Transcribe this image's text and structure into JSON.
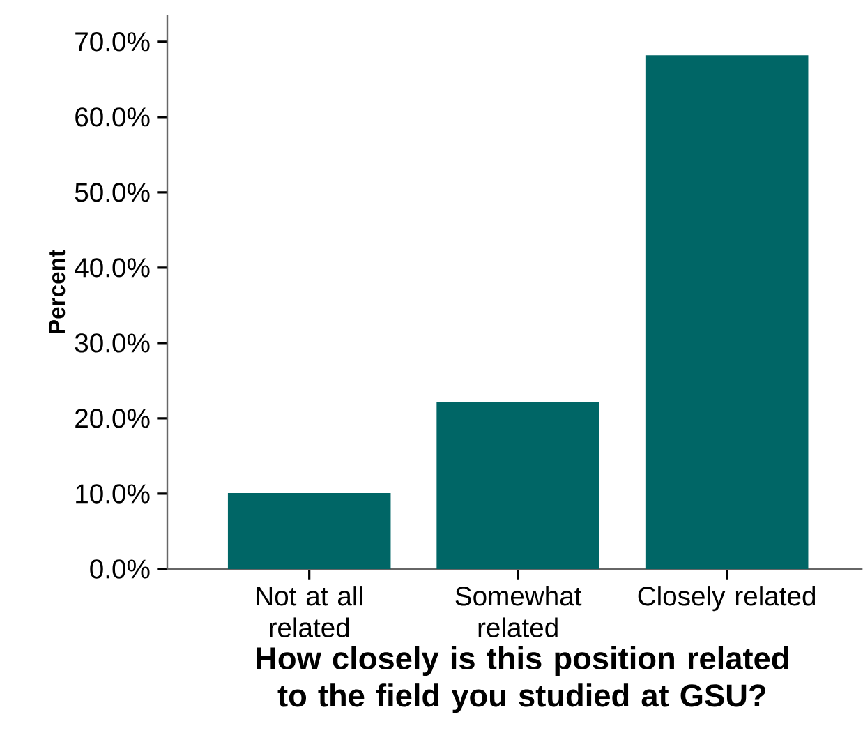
{
  "chart_data": {
    "type": "bar",
    "xlabel": "How closely is this position related to the field you studied at GSU?",
    "ylabel": "Percent",
    "categories": [
      "Not at all related",
      "Somewhat related",
      "Closely related"
    ],
    "values": [
      10.1,
      22.2,
      68.2
    ],
    "color": "#006666",
    "ylim": [
      0,
      73.5
    ],
    "yticks": [
      {
        "value": 0,
        "label": "0.0%"
      },
      {
        "value": 10,
        "label": "10.0%"
      },
      {
        "value": 20,
        "label": "20.0%"
      },
      {
        "value": 30,
        "label": "30.0%"
      },
      {
        "value": 40,
        "label": "40.0%"
      },
      {
        "value": 50,
        "label": "50.0%"
      },
      {
        "value": 60,
        "label": "60.0%"
      },
      {
        "value": 70,
        "label": "70.0%"
      }
    ],
    "grid": false
  }
}
